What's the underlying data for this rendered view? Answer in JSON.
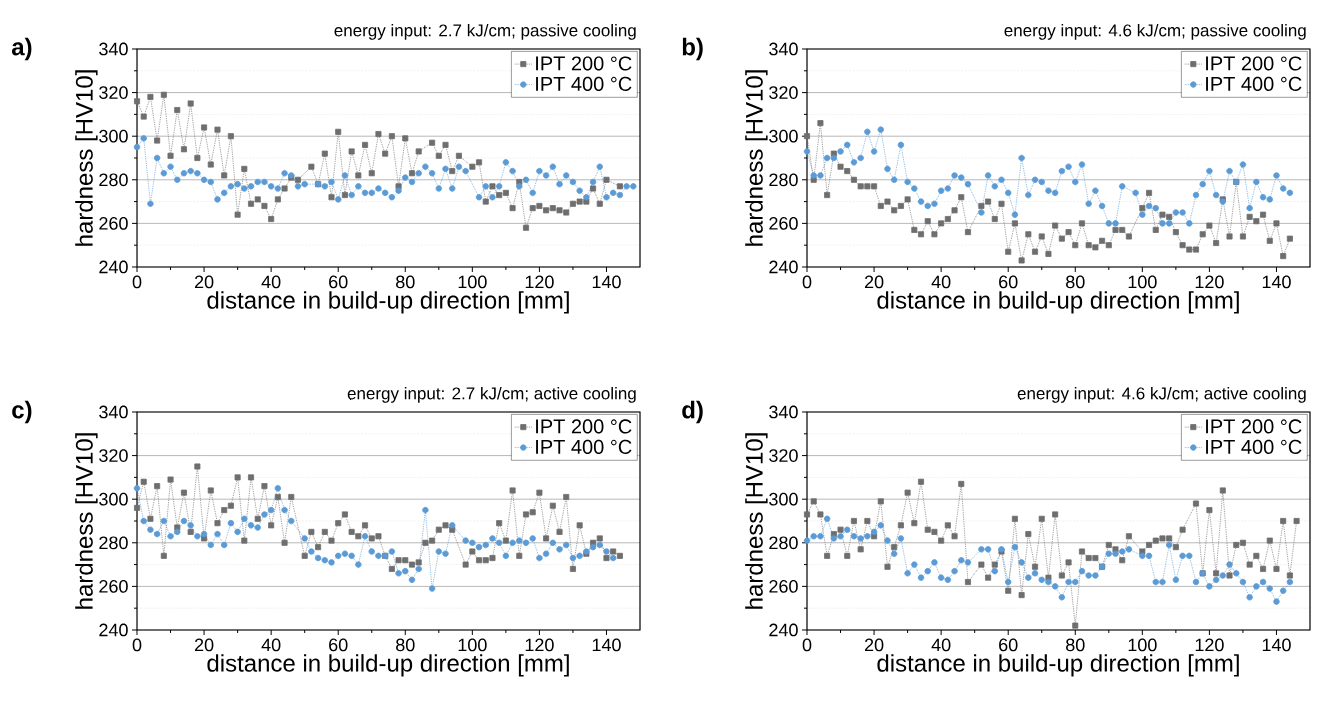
{
  "chart_data": [
    {
      "type": "line",
      "title": "energy input: 2.7 kJ/cm; passive cooling",
      "annotations": [
        "a)"
      ],
      "xlabel": "distance in build-up direction [mm]",
      "ylabel": "hardness [HV10]",
      "xlim": [
        0,
        150
      ],
      "ylim": [
        240,
        340
      ],
      "xticks": [
        0,
        20,
        40,
        60,
        80,
        100,
        120,
        140
      ],
      "yticks": [
        240,
        260,
        280,
        300,
        320,
        340
      ],
      "grid": "y",
      "legend": "top right",
      "line_style": "dotted",
      "series": [
        {
          "name": "IPT 200 °C",
          "color": "#6e6e6e",
          "marker": "square",
          "x": [
            0,
            2,
            4,
            6,
            8,
            10,
            12,
            14,
            16,
            18,
            20,
            22,
            24,
            26,
            28,
            30,
            32,
            34,
            36,
            38,
            40,
            42,
            44,
            46,
            48,
            52,
            54,
            56,
            58,
            60,
            62,
            64,
            66,
            68,
            70,
            72,
            74,
            76,
            78,
            80,
            82,
            84,
            88,
            90,
            92,
            94,
            96,
            100,
            102,
            104,
            106,
            108,
            110,
            112,
            114,
            116,
            118,
            120,
            122,
            124,
            126,
            128,
            130,
            132,
            134,
            136,
            138,
            140,
            144
          ],
          "values": [
            316,
            309,
            318,
            298,
            319,
            291,
            312,
            294,
            315,
            290,
            304,
            287,
            303,
            282,
            300,
            264,
            285,
            269,
            271,
            268,
            262,
            271,
            276,
            281,
            280,
            286,
            278,
            292,
            272,
            302,
            273,
            293,
            282,
            296,
            283,
            301,
            292,
            300,
            277,
            299,
            283,
            293,
            297,
            291,
            296,
            284,
            291,
            286,
            288,
            270,
            277,
            273,
            274,
            267,
            279,
            258,
            267,
            268,
            266,
            267,
            266,
            265,
            269,
            270,
            270,
            276,
            269,
            280,
            277
          ]
        },
        {
          "name": "IPT 400 °C",
          "color": "#5b9bd5",
          "marker": "circle",
          "x": [
            0,
            2,
            4,
            6,
            8,
            10,
            12,
            14,
            16,
            18,
            20,
            22,
            24,
            26,
            28,
            30,
            32,
            34,
            36,
            38,
            40,
            42,
            44,
            46,
            48,
            50,
            54,
            56,
            58,
            60,
            62,
            64,
            66,
            68,
            70,
            72,
            74,
            76,
            78,
            80,
            82,
            84,
            86,
            88,
            90,
            92,
            94,
            96,
            98,
            102,
            104,
            106,
            108,
            110,
            112,
            114,
            116,
            118,
            120,
            122,
            124,
            126,
            128,
            130,
            132,
            134,
            136,
            138,
            140,
            142,
            144,
            146,
            148
          ],
          "values": [
            295,
            299,
            269,
            290,
            283,
            286,
            280,
            283,
            284,
            283,
            280,
            279,
            271,
            274,
            277,
            278,
            276,
            277,
            279,
            279,
            277,
            276,
            283,
            282,
            277,
            278,
            278,
            277,
            279,
            271,
            282,
            273,
            277,
            274,
            274,
            276,
            274,
            272,
            275,
            281,
            279,
            283,
            286,
            283,
            276,
            285,
            276,
            286,
            284,
            272,
            277,
            272,
            277,
            288,
            284,
            277,
            280,
            274,
            284,
            282,
            286,
            278,
            282,
            279,
            275,
            272,
            279,
            286,
            272,
            274,
            273,
            277,
            277
          ]
        }
      ]
    },
    {
      "type": "line",
      "title": "energy input: 4.6 kJ/cm; passive cooling",
      "annotations": [
        "b)"
      ],
      "xlabel": "distance in build-up direction [mm]",
      "ylabel": "hardness [HV10]",
      "xlim": [
        0,
        150
      ],
      "ylim": [
        240,
        340
      ],
      "xticks": [
        0,
        20,
        40,
        60,
        80,
        100,
        120,
        140
      ],
      "yticks": [
        240,
        260,
        280,
        300,
        320,
        340
      ],
      "grid": "y",
      "legend": "top right",
      "line_style": "dotted",
      "series": [
        {
          "name": "IPT 200 °C",
          "color": "#6e6e6e",
          "marker": "square",
          "x": [
            0,
            2,
            4,
            6,
            8,
            10,
            12,
            14,
            16,
            18,
            20,
            22,
            24,
            26,
            28,
            30,
            32,
            34,
            36,
            38,
            40,
            42,
            44,
            46,
            48,
            52,
            54,
            56,
            58,
            60,
            62,
            64,
            66,
            68,
            70,
            72,
            74,
            76,
            78,
            80,
            82,
            84,
            86,
            88,
            90,
            92,
            94,
            96,
            100,
            102,
            104,
            106,
            108,
            110,
            112,
            114,
            116,
            118,
            120,
            122,
            124,
            126,
            128,
            130,
            132,
            134,
            136,
            138,
            140,
            142,
            144
          ],
          "values": [
            300,
            280,
            306,
            273,
            292,
            286,
            284,
            280,
            277,
            277,
            277,
            268,
            270,
            266,
            268,
            271,
            257,
            255,
            261,
            255,
            260,
            262,
            266,
            272,
            256,
            268,
            270,
            262,
            269,
            247,
            260,
            243,
            255,
            247,
            254,
            246,
            259,
            253,
            256,
            250,
            260,
            250,
            249,
            252,
            250,
            257,
            257,
            254,
            267,
            274,
            257,
            264,
            263,
            256,
            250,
            248,
            248,
            255,
            259,
            251,
            271,
            254,
            279,
            254,
            263,
            261,
            264,
            252,
            260,
            245,
            253
          ]
        },
        {
          "name": "IPT 400 °C",
          "color": "#5b9bd5",
          "marker": "circle",
          "x": [
            0,
            2,
            4,
            6,
            8,
            10,
            12,
            14,
            16,
            18,
            20,
            22,
            24,
            26,
            28,
            30,
            32,
            34,
            36,
            38,
            40,
            42,
            44,
            46,
            48,
            52,
            54,
            56,
            58,
            60,
            62,
            64,
            66,
            68,
            70,
            72,
            74,
            76,
            78,
            80,
            82,
            84,
            86,
            88,
            90,
            92,
            94,
            98,
            100,
            102,
            104,
            106,
            108,
            110,
            112,
            114,
            116,
            118,
            120,
            122,
            124,
            126,
            128,
            130,
            132,
            134,
            136,
            138,
            140,
            142,
            144
          ],
          "values": [
            293,
            282,
            282,
            290,
            290,
            293,
            296,
            288,
            290,
            302,
            293,
            303,
            285,
            280,
            296,
            279,
            276,
            270,
            268,
            269,
            275,
            276,
            282,
            281,
            278,
            265,
            282,
            277,
            280,
            274,
            264,
            290,
            273,
            280,
            279,
            275,
            274,
            284,
            286,
            279,
            287,
            269,
            275,
            268,
            260,
            260,
            277,
            274,
            264,
            268,
            267,
            260,
            260,
            265,
            265,
            260,
            273,
            278,
            284,
            273,
            270,
            284,
            279,
            287,
            267,
            279,
            272,
            271,
            282,
            276,
            274
          ]
        }
      ]
    },
    {
      "type": "line",
      "title": "energy input: 2.7 kJ/cm; active cooling",
      "annotations": [
        "c)"
      ],
      "xlabel": "distance in build-up direction [mm]",
      "ylabel": "hardness [HV10]",
      "xlim": [
        0,
        150
      ],
      "ylim": [
        240,
        340
      ],
      "xticks": [
        0,
        20,
        40,
        60,
        80,
        100,
        120,
        140
      ],
      "yticks": [
        240,
        260,
        280,
        300,
        320,
        340
      ],
      "grid": "y",
      "legend": "top right",
      "line_style": "dotted",
      "series": [
        {
          "name": "IPT 200 °C",
          "color": "#6e6e6e",
          "marker": "square",
          "x": [
            0,
            2,
            4,
            6,
            8,
            10,
            12,
            14,
            16,
            18,
            20,
            22,
            24,
            26,
            28,
            30,
            32,
            34,
            36,
            38,
            40,
            42,
            44,
            46,
            50,
            52,
            54,
            56,
            58,
            60,
            62,
            64,
            66,
            68,
            70,
            72,
            74,
            76,
            78,
            80,
            82,
            84,
            86,
            88,
            90,
            92,
            94,
            98,
            100,
            102,
            104,
            106,
            108,
            110,
            112,
            114,
            116,
            118,
            120,
            122,
            124,
            126,
            128,
            130,
            132,
            134,
            136,
            138,
            140,
            142,
            144
          ],
          "values": [
            296,
            308,
            291,
            306,
            274,
            309,
            287,
            303,
            285,
            315,
            282,
            304,
            289,
            295,
            297,
            310,
            281,
            310,
            291,
            306,
            288,
            301,
            280,
            301,
            274,
            285,
            278,
            285,
            281,
            289,
            293,
            285,
            283,
            288,
            282,
            283,
            274,
            268,
            272,
            272,
            270,
            271,
            280,
            281,
            286,
            288,
            286,
            270,
            276,
            272,
            272,
            273,
            289,
            281,
            304,
            274,
            293,
            294,
            303,
            282,
            297,
            285,
            301,
            268,
            288,
            275,
            280,
            282,
            273,
            276,
            274
          ]
        },
        {
          "name": "IPT 400 °C",
          "color": "#5b9bd5",
          "marker": "circle",
          "x": [
            0,
            2,
            4,
            6,
            8,
            10,
            12,
            14,
            16,
            18,
            20,
            22,
            24,
            26,
            28,
            30,
            32,
            34,
            36,
            38,
            40,
            42,
            44,
            46,
            50,
            52,
            54,
            56,
            58,
            60,
            62,
            64,
            66,
            68,
            70,
            72,
            74,
            76,
            78,
            80,
            82,
            84,
            86,
            88,
            90,
            92,
            94,
            98,
            100,
            102,
            104,
            106,
            108,
            110,
            112,
            114,
            116,
            118,
            120,
            122,
            124,
            126,
            128,
            130,
            132,
            134,
            136,
            138,
            140,
            142
          ],
          "values": [
            305,
            290,
            286,
            284,
            290,
            283,
            285,
            290,
            288,
            283,
            284,
            279,
            284,
            279,
            289,
            285,
            291,
            288,
            287,
            293,
            295,
            305,
            295,
            290,
            282,
            276,
            273,
            272,
            271,
            274,
            275,
            274,
            270,
            283,
            276,
            274,
            274,
            276,
            266,
            267,
            263,
            268,
            295,
            259,
            276,
            275,
            288,
            281,
            280,
            278,
            279,
            282,
            280,
            274,
            280,
            281,
            280,
            282,
            273,
            275,
            280,
            277,
            279,
            273,
            274,
            276,
            278,
            279,
            276,
            273
          ]
        }
      ]
    },
    {
      "type": "line",
      "title": "energy input: 4.6 kJ/cm; active cooling",
      "annotations": [
        "d)"
      ],
      "xlabel": "distance in build-up direction [mm]",
      "ylabel": "hardness [HV10]",
      "xlim": [
        0,
        150
      ],
      "ylim": [
        240,
        340
      ],
      "xticks": [
        0,
        20,
        40,
        60,
        80,
        100,
        120,
        140
      ],
      "yticks": [
        240,
        260,
        280,
        300,
        320,
        340
      ],
      "grid": "y",
      "legend": "top right",
      "line_style": "dotted",
      "series": [
        {
          "name": "IPT 200 °C",
          "color": "#6e6e6e",
          "marker": "square",
          "x": [
            0,
            2,
            4,
            6,
            8,
            10,
            12,
            14,
            16,
            18,
            20,
            22,
            24,
            26,
            28,
            30,
            32,
            34,
            36,
            38,
            40,
            42,
            44,
            46,
            48,
            52,
            54,
            56,
            58,
            60,
            62,
            64,
            66,
            68,
            70,
            72,
            74,
            76,
            78,
            80,
            82,
            84,
            86,
            88,
            90,
            92,
            94,
            96,
            100,
            102,
            104,
            106,
            108,
            110,
            112,
            116,
            118,
            120,
            122,
            124,
            126,
            128,
            130,
            132,
            134,
            136,
            138,
            140,
            142,
            144,
            146
          ],
          "values": [
            293,
            299,
            293,
            274,
            284,
            286,
            274,
            290,
            277,
            290,
            283,
            299,
            269,
            278,
            288,
            303,
            289,
            308,
            286,
            285,
            281,
            288,
            283,
            307,
            262,
            270,
            264,
            270,
            276,
            258,
            291,
            256,
            284,
            269,
            291,
            264,
            293,
            265,
            271,
            242,
            276,
            273,
            273,
            269,
            279,
            277,
            272,
            283,
            276,
            279,
            281,
            282,
            282,
            278,
            286,
            298,
            266,
            295,
            266,
            304,
            265,
            279,
            280,
            270,
            274,
            268,
            281,
            268,
            290,
            265,
            290
          ]
        },
        {
          "name": "IPT 400 °C",
          "color": "#5b9bd5",
          "marker": "circle",
          "x": [
            0,
            2,
            4,
            6,
            8,
            10,
            12,
            14,
            16,
            18,
            20,
            22,
            24,
            26,
            28,
            30,
            32,
            34,
            36,
            38,
            40,
            42,
            44,
            46,
            48,
            52,
            54,
            56,
            58,
            60,
            62,
            64,
            66,
            68,
            70,
            72,
            74,
            76,
            78,
            80,
            82,
            84,
            86,
            88,
            90,
            92,
            94,
            96,
            100,
            102,
            104,
            106,
            108,
            110,
            112,
            114,
            116,
            118,
            120,
            122,
            124,
            126,
            128,
            130,
            132,
            134,
            136,
            138,
            140,
            142,
            144
          ],
          "values": [
            281,
            283,
            283,
            291,
            282,
            283,
            286,
            283,
            282,
            283,
            285,
            288,
            281,
            275,
            282,
            266,
            270,
            264,
            267,
            271,
            264,
            263,
            267,
            272,
            271,
            277,
            277,
            267,
            277,
            262,
            278,
            271,
            264,
            266,
            263,
            262,
            260,
            255,
            262,
            262,
            267,
            265,
            265,
            269,
            275,
            275,
            276,
            277,
            274,
            274,
            262,
            262,
            279,
            263,
            274,
            274,
            262,
            266,
            260,
            263,
            265,
            270,
            266,
            262,
            255,
            260,
            262,
            259,
            253,
            258,
            262
          ]
        }
      ]
    }
  ]
}
